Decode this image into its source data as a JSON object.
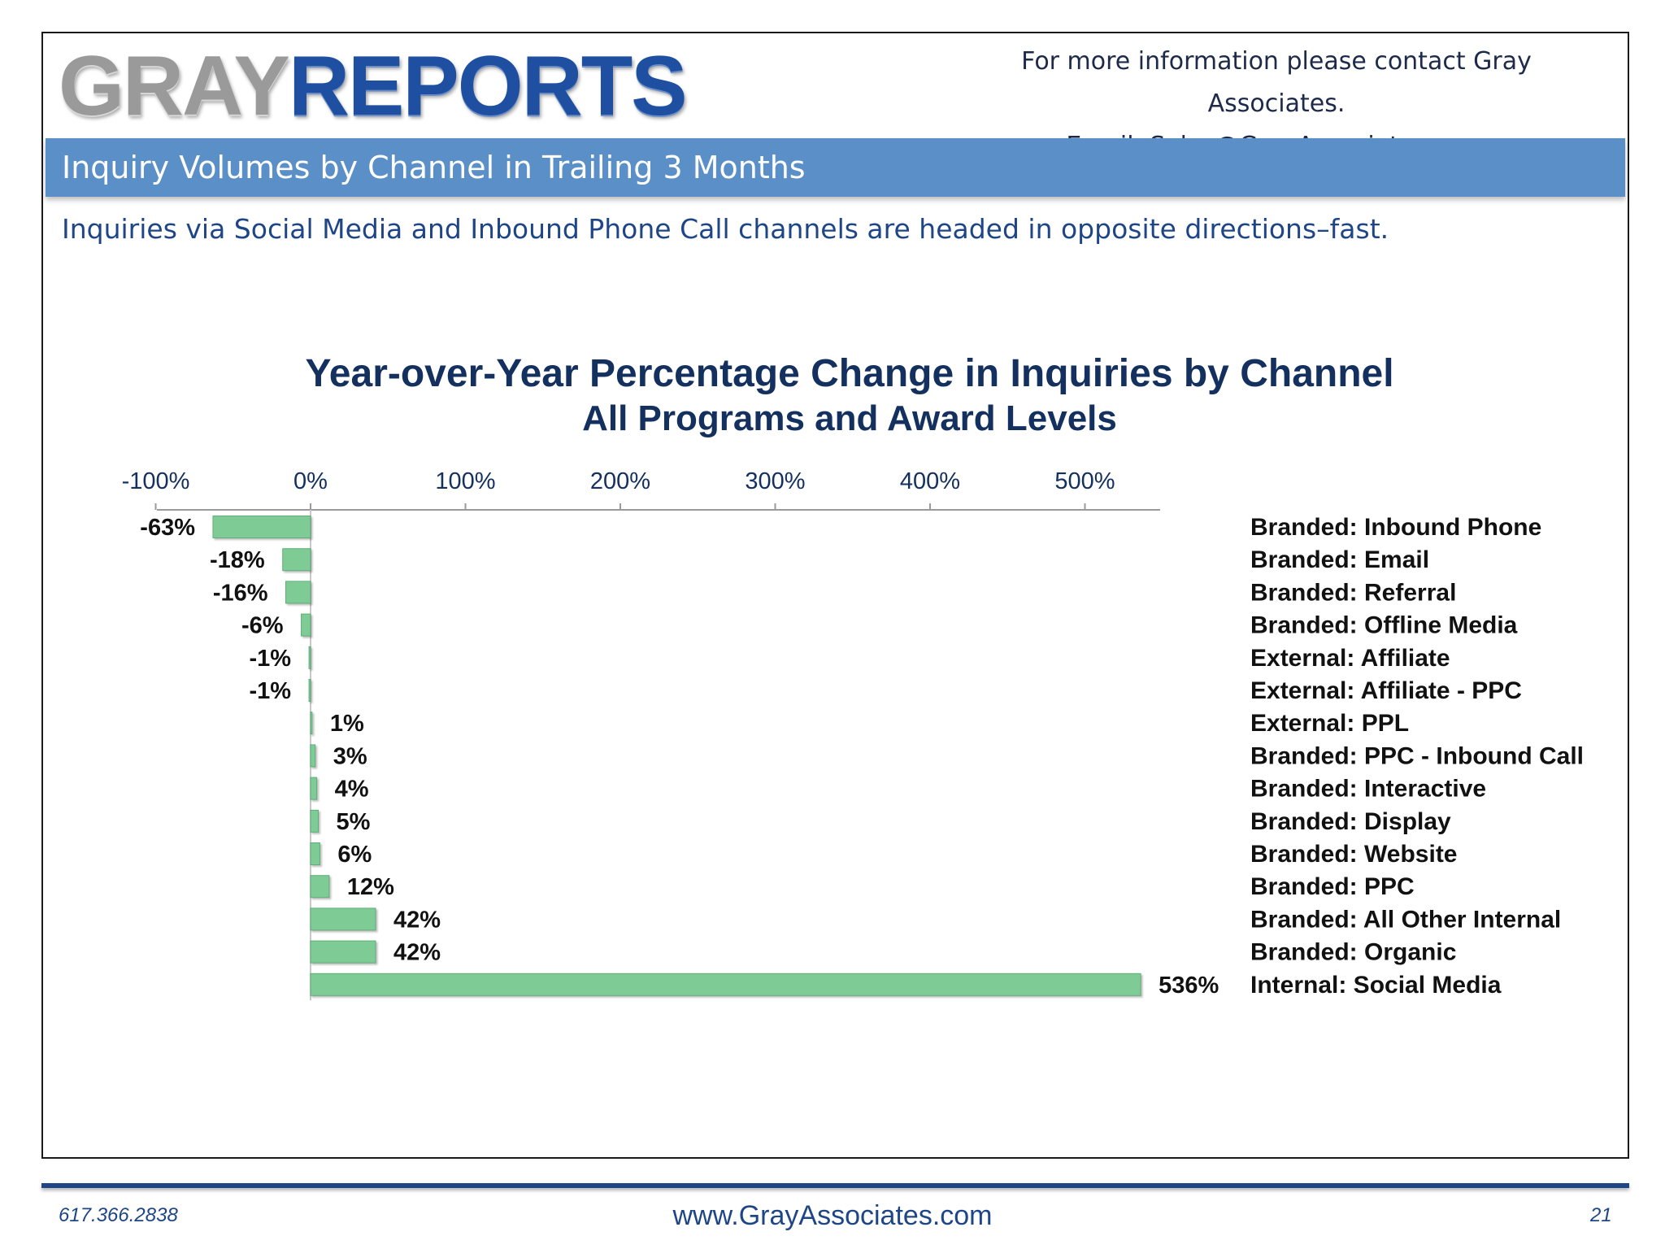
{
  "header": {
    "logo_gray": "GRAY",
    "logo_reports": "REPORTS",
    "contact_line1": "For more information please contact Gray Associates.",
    "contact_line2": "Email:  Sales@GrayAssociates.com"
  },
  "banner": {
    "title": "Inquiry Volumes by Channel in Trailing 3 Months"
  },
  "subtitle": "Inquiries via Social Media and Inbound Phone Call channels are headed in opposite directions–fast.",
  "colors": {
    "bar": "#7ecb96",
    "bar_edge": "#5fae78",
    "axis": "#9a9a9a",
    "banner": "#5b8fc7",
    "title": "#13305f"
  },
  "chart_data": {
    "type": "bar",
    "orientation": "horizontal",
    "title": "Year-over-Year  Percentage Change in Inquiries by Channel",
    "subtitle": "All Programs and Award Levels",
    "xlim": [
      -100,
      550
    ],
    "x_ticks": [
      -100,
      0,
      100,
      200,
      300,
      400,
      500
    ],
    "x_tick_labels": [
      "-100%",
      "0%",
      "100%",
      "200%",
      "300%",
      "400%",
      "500%"
    ],
    "axis_position": "top",
    "legend": "none",
    "categories": [
      "Branded: Inbound Phone",
      "Branded: Email",
      "Branded: Referral",
      "Branded: Offline Media",
      "External: Affiliate",
      "External: Affiliate - PPC",
      "External: PPL",
      "Branded: PPC - Inbound Call",
      "Branded: Interactive",
      "Branded: Display",
      "Branded: Website",
      "Branded: PPC",
      "Branded: All Other Internal",
      "Branded: Organic",
      "Internal: Social Media"
    ],
    "values": [
      -63,
      -18,
      -16,
      -6,
      -1,
      -1,
      1,
      3,
      4,
      5,
      6,
      12,
      42,
      42,
      536
    ],
    "value_labels": [
      "-63%",
      "-18%",
      "-16%",
      "-6%",
      "-1%",
      "-1%",
      "1%",
      "3%",
      "4%",
      "5%",
      "6%",
      "12%",
      "42%",
      "42%",
      "536%"
    ]
  },
  "footer": {
    "phone": "617.366.2838",
    "url": "www.GrayAssociates.com",
    "page": "21"
  }
}
